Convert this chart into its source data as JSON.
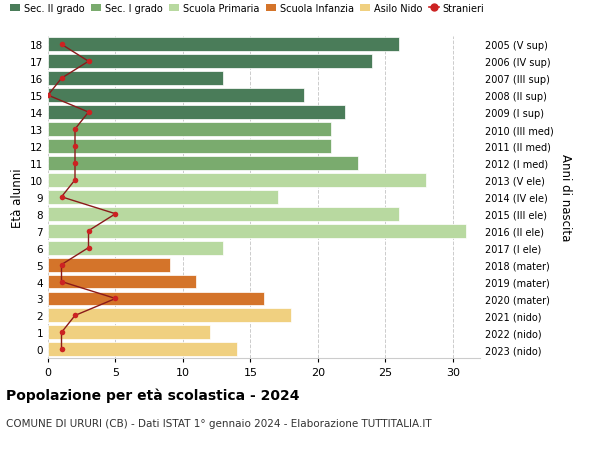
{
  "ages": [
    18,
    17,
    16,
    15,
    14,
    13,
    12,
    11,
    10,
    9,
    8,
    7,
    6,
    5,
    4,
    3,
    2,
    1,
    0
  ],
  "years": [
    "2005 (V sup)",
    "2006 (IV sup)",
    "2007 (III sup)",
    "2008 (II sup)",
    "2009 (I sup)",
    "2010 (III med)",
    "2011 (II med)",
    "2012 (I med)",
    "2013 (V ele)",
    "2014 (IV ele)",
    "2015 (III ele)",
    "2016 (II ele)",
    "2017 (I ele)",
    "2018 (mater)",
    "2019 (mater)",
    "2020 (mater)",
    "2021 (nido)",
    "2022 (nido)",
    "2023 (nido)"
  ],
  "bar_values": [
    26,
    24,
    13,
    19,
    22,
    21,
    21,
    23,
    28,
    17,
    26,
    31,
    13,
    9,
    11,
    16,
    18,
    12,
    14
  ],
  "bar_colors": [
    "#4a7c59",
    "#4a7c59",
    "#4a7c59",
    "#4a7c59",
    "#4a7c59",
    "#7aab6e",
    "#7aab6e",
    "#7aab6e",
    "#b8d9a0",
    "#b8d9a0",
    "#b8d9a0",
    "#b8d9a0",
    "#b8d9a0",
    "#d4742a",
    "#d4742a",
    "#d4742a",
    "#f0d080",
    "#f0d080",
    "#f0d080"
  ],
  "stranieri_values": [
    1,
    3,
    1,
    0,
    3,
    2,
    2,
    2,
    2,
    1,
    5,
    3,
    3,
    1,
    1,
    5,
    2,
    1,
    1
  ],
  "legend_labels": [
    "Sec. II grado",
    "Sec. I grado",
    "Scuola Primaria",
    "Scuola Infanzia",
    "Asilo Nido",
    "Stranieri"
  ],
  "legend_colors": [
    "#4a7c59",
    "#7aab6e",
    "#b8d9a0",
    "#d4742a",
    "#f0d080",
    "#cc2222"
  ],
  "title": "Popolazione per età scolastica - 2024",
  "subtitle": "COMUNE DI URURI (CB) - Dati ISTAT 1° gennaio 2024 - Elaborazione TUTTITALIA.IT",
  "ylabel_left": "Età alunni",
  "ylabel_right": "Anni di nascita",
  "bg_color": "#ffffff",
  "grid_color": "#cccccc",
  "xlim": [
    0,
    32
  ],
  "xticks": [
    0,
    5,
    10,
    15,
    20,
    25,
    30
  ]
}
